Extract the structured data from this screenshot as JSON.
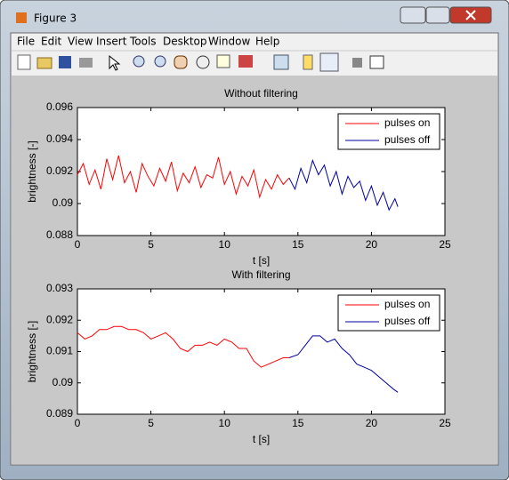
{
  "window": {
    "title": "Figure 3"
  },
  "menu": [
    "File",
    "Edit",
    "View",
    "Insert",
    "Tools",
    "Desktop",
    "Window",
    "Help"
  ],
  "chart_data": [
    {
      "type": "line",
      "title": "Without filtering",
      "xlabel": "t [s]",
      "ylabel": "brightness [-]",
      "xlim": [
        0,
        25
      ],
      "xticks": [
        0,
        5,
        10,
        15,
        20,
        25
      ],
      "ylim": [
        0.088,
        0.096
      ],
      "yticks": [
        0.088,
        0.09,
        0.092,
        0.094,
        0.096
      ],
      "legend": "upper right",
      "series": [
        {
          "name": "pulses on",
          "color": "#ff0000",
          "x": [
            0,
            0.4,
            0.8,
            1.2,
            1.6,
            2,
            2.4,
            2.8,
            3.2,
            3.6,
            4,
            4.4,
            4.8,
            5.2,
            5.6,
            6,
            6.4,
            6.8,
            7.2,
            7.6,
            8,
            8.4,
            8.8,
            9.2,
            9.6,
            10,
            10.4,
            10.8,
            11.2,
            11.6,
            12,
            12.4,
            12.8,
            13.2,
            13.6,
            14,
            14.4
          ],
          "values": [
            0.0918,
            0.0925,
            0.0912,
            0.0921,
            0.0909,
            0.0928,
            0.0915,
            0.093,
            0.0913,
            0.092,
            0.0907,
            0.0925,
            0.0917,
            0.0911,
            0.0922,
            0.0914,
            0.0926,
            0.0908,
            0.0919,
            0.0913,
            0.0923,
            0.091,
            0.0918,
            0.0916,
            0.0929,
            0.0912,
            0.092,
            0.0906,
            0.0917,
            0.0911,
            0.0921,
            0.0904,
            0.0915,
            0.0909,
            0.0918,
            0.0912,
            0.0916
          ]
        },
        {
          "name": "pulses off",
          "color": "#0000a0",
          "x": [
            14.4,
            14.8,
            15.2,
            15.6,
            16,
            16.4,
            16.8,
            17.2,
            17.6,
            18,
            18.4,
            18.8,
            19.2,
            19.6,
            20,
            20.4,
            20.8,
            21.2,
            21.6,
            21.8
          ],
          "values": [
            0.0916,
            0.0909,
            0.0922,
            0.0913,
            0.0927,
            0.0918,
            0.0924,
            0.0911,
            0.092,
            0.0906,
            0.0917,
            0.091,
            0.0914,
            0.0902,
            0.0911,
            0.0899,
            0.0907,
            0.0896,
            0.0903,
            0.0898
          ]
        }
      ]
    },
    {
      "type": "line",
      "title": "With filtering",
      "xlabel": "t [s]",
      "ylabel": "brightness [-]",
      "xlim": [
        0,
        25
      ],
      "xticks": [
        0,
        5,
        10,
        15,
        20,
        25
      ],
      "ylim": [
        0.089,
        0.093
      ],
      "yticks": [
        0.089,
        0.09,
        0.091,
        0.092,
        0.093
      ],
      "legend": "upper right",
      "series": [
        {
          "name": "pulses on",
          "color": "#ff0000",
          "x": [
            0,
            0.5,
            1,
            1.5,
            2,
            2.5,
            3,
            3.5,
            4,
            4.5,
            5,
            5.5,
            6,
            6.5,
            7,
            7.5,
            8,
            8.5,
            9,
            9.5,
            10,
            10.5,
            11,
            11.5,
            12,
            12.5,
            13,
            13.5,
            14,
            14.4
          ],
          "values": [
            0.0916,
            0.0914,
            0.0915,
            0.0917,
            0.0917,
            0.0918,
            0.0918,
            0.0917,
            0.0917,
            0.0916,
            0.0914,
            0.0915,
            0.0916,
            0.0914,
            0.0911,
            0.091,
            0.0912,
            0.0912,
            0.0913,
            0.0912,
            0.0914,
            0.0913,
            0.0911,
            0.0911,
            0.0907,
            0.0905,
            0.0906,
            0.0907,
            0.0908,
            0.0908
          ]
        },
        {
          "name": "pulses off",
          "color": "#0000a0",
          "x": [
            14.4,
            15,
            15.5,
            16,
            16.5,
            17,
            17.5,
            18,
            18.5,
            19,
            19.5,
            20,
            20.5,
            21,
            21.5,
            21.8
          ],
          "values": [
            0.0908,
            0.0909,
            0.0912,
            0.0915,
            0.0915,
            0.0913,
            0.0914,
            0.0911,
            0.0909,
            0.0906,
            0.0905,
            0.0904,
            0.0902,
            0.09,
            0.0898,
            0.0897
          ]
        }
      ]
    }
  ]
}
